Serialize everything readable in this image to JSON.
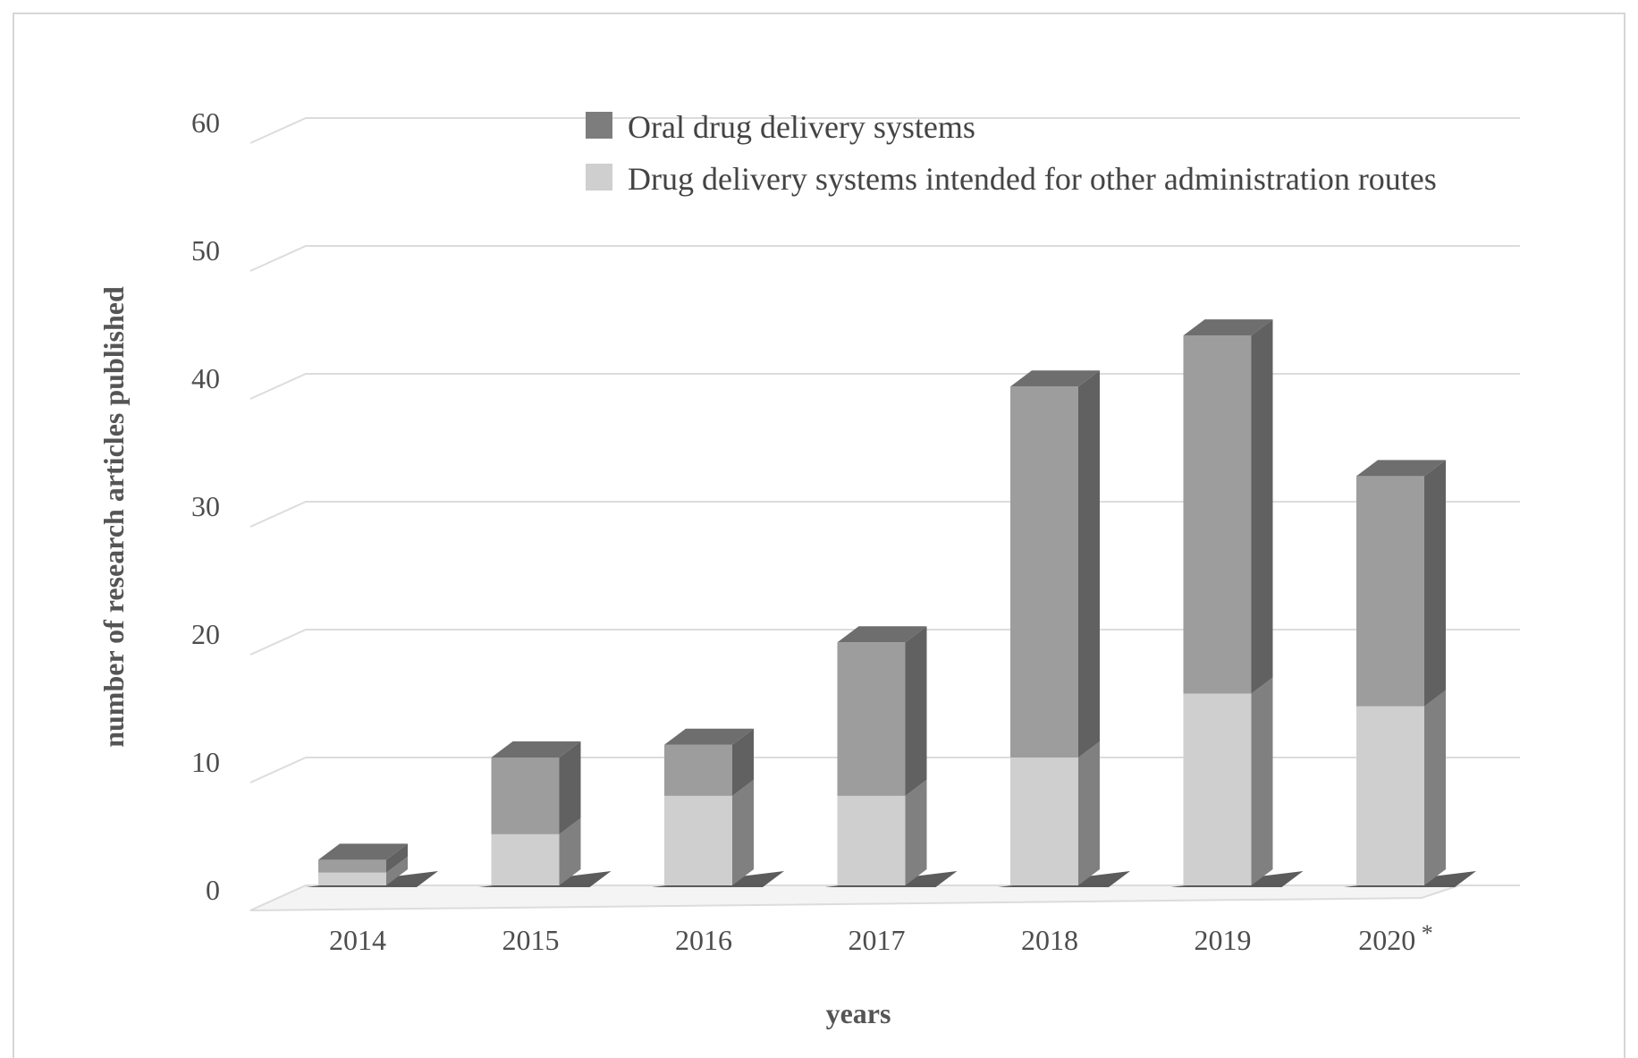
{
  "chart_data": {
    "type": "bar",
    "stacked": true,
    "three_d": true,
    "categories": [
      "2014",
      "2015",
      "2016",
      "2017",
      "2018",
      "2019",
      "2020"
    ],
    "category_note": "*",
    "series": [
      {
        "name": "Drug delivery systems intended for other administration routes",
        "values": [
          1,
          4,
          7,
          7,
          10,
          15,
          14
        ],
        "color": "#cfcfcf"
      },
      {
        "name": "Oral drug delivery systems",
        "values": [
          1,
          6,
          4,
          12,
          29,
          28,
          18
        ],
        "color": "#9d9d9d"
      }
    ],
    "legend_order": [
      1,
      0
    ],
    "legend_placement": "top-center",
    "xlabel": "years",
    "ylabel": "number of research articles published",
    "ylim": [
      0,
      60
    ],
    "yticks": [
      0,
      10,
      20,
      30,
      40,
      50,
      60
    ],
    "grid": true,
    "colors": {
      "grid": "#dcdcdc",
      "text": "#4d4d4d",
      "shadow": "#4a4a4a"
    }
  }
}
